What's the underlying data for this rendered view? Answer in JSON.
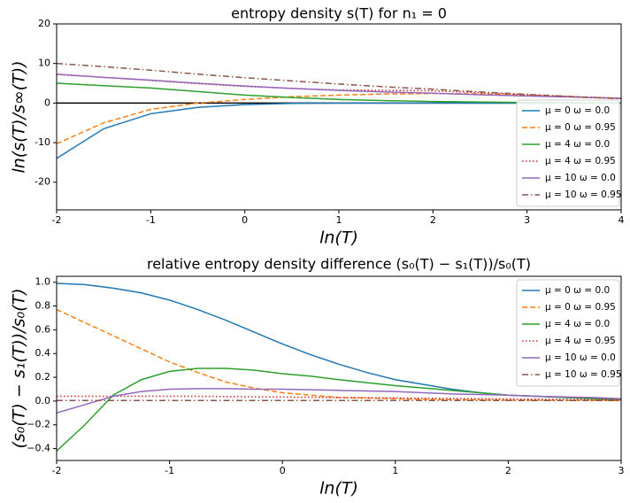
{
  "chart_data": [
    {
      "type": "line",
      "title": "entropy density s(T) for n₁ = 0",
      "x_label": "ln(T)",
      "y_label": "ln(s(T)/s∞(T))",
      "x": [
        -2,
        -1.5,
        -1,
        -0.5,
        0,
        0.5,
        1,
        1.5,
        2,
        2.5,
        3,
        3.5,
        4
      ],
      "xlim": [
        -2,
        4
      ],
      "ylim": [
        -27,
        20
      ],
      "xticks": [
        -2,
        -1,
        0,
        1,
        2,
        3,
        4
      ],
      "yticks": [
        -20,
        -10,
        0,
        10,
        20
      ],
      "zero_line": true,
      "legend": "lower right",
      "series": [
        {
          "name": "μ = 0 ω = 0.0",
          "color": "#1f77b4",
          "dash": "solid",
          "values": [
            -14,
            -6.5,
            -2.7,
            -1.1,
            -0.4,
            -0.1,
            0,
            0,
            0,
            0,
            0,
            0,
            0
          ]
        },
        {
          "name": "μ = 0 ω = 0.95",
          "color": "#ff7f0e",
          "dash": "dashed",
          "values": [
            -10.3,
            -5,
            -1.6,
            0,
            0.9,
            1.6,
            2,
            2.3,
            2.4,
            2.3,
            2,
            1.6,
            1.2
          ]
        },
        {
          "name": "μ = 4 ω = 0.0",
          "color": "#2ca02c",
          "dash": "solid",
          "values": [
            5,
            4.4,
            3.8,
            2.9,
            2,
            1.4,
            0.9,
            0.6,
            0.4,
            0.25,
            0.15,
            0.1,
            0.05
          ]
        },
        {
          "name": "μ = 4 ω = 0.95",
          "color": "#d62728",
          "dash": "dotted",
          "values": [
            7.2,
            6.5,
            5.7,
            4.9,
            4.2,
            3.7,
            3.3,
            3.2,
            3.1,
            2.6,
            2.1,
            1.6,
            1.1
          ]
        },
        {
          "name": "μ = 10 ω = 0.0",
          "color": "#9467bd",
          "dash": "solid",
          "values": [
            7.3,
            6.5,
            5.8,
            5,
            4.3,
            3.7,
            3.2,
            2.8,
            2.5,
            2.1,
            1.8,
            1.5,
            1.2
          ]
        },
        {
          "name": "μ = 10 ω = 0.95",
          "color": "#8c564b",
          "dash": "dashdot",
          "values": [
            10,
            9.2,
            8.3,
            7.3,
            6.4,
            5.6,
            4.8,
            4.1,
            3.5,
            2.8,
            2.2,
            1.6,
            1.1
          ]
        }
      ]
    },
    {
      "type": "line",
      "title": "relative entropy density difference (s₀(T) − s₁(T))/s₀(T)",
      "x_label": "ln(T)",
      "y_label": "(s₀(T) − s₁(T))/s₀(T)",
      "x": [
        -2,
        -1.75,
        -1.5,
        -1.25,
        -1,
        -0.75,
        -0.5,
        -0.25,
        0,
        0.25,
        0.5,
        0.75,
        1,
        1.25,
        1.5,
        1.75,
        2,
        2.25,
        2.5,
        2.75,
        3
      ],
      "xlim": [
        -2,
        3
      ],
      "ylim": [
        -0.5,
        1.05
      ],
      "xticks": [
        -2,
        -1,
        0,
        1,
        2,
        3
      ],
      "yticks": [
        {
          "value": -0.4,
          "label": "−0.4"
        },
        {
          "value": -0.2,
          "label": "−0.2"
        },
        {
          "value": 0,
          "label": "0.0"
        },
        0.2,
        0.4,
        0.6,
        0.8,
        {
          "value": 1,
          "label": "1.0"
        }
      ],
      "zero_line": false,
      "legend": "upper right",
      "series": [
        {
          "name": "μ = 0 ω = 0.0",
          "color": "#1f77b4",
          "dash": "solid",
          "values": [
            0.99,
            0.98,
            0.95,
            0.91,
            0.85,
            0.77,
            0.68,
            0.58,
            0.48,
            0.39,
            0.31,
            0.24,
            0.18,
            0.14,
            0.1,
            0.07,
            0.05,
            0.04,
            0.03,
            0.02,
            0.01
          ]
        },
        {
          "name": "μ = 0 ω = 0.95",
          "color": "#ff7f0e",
          "dash": "dashed",
          "values": [
            0.77,
            0.66,
            0.55,
            0.44,
            0.33,
            0.24,
            0.16,
            0.11,
            0.07,
            0.05,
            0.03,
            0.025,
            0.02,
            0.015,
            0.012,
            0.01,
            0.008,
            0.007,
            0.006,
            0.005,
            0.004
          ]
        },
        {
          "name": "μ = 4 ω = 0.0",
          "color": "#2ca02c",
          "dash": "solid",
          "values": [
            -0.42,
            -0.2,
            0.05,
            0.18,
            0.25,
            0.275,
            0.275,
            0.26,
            0.23,
            0.21,
            0.18,
            0.155,
            0.13,
            0.11,
            0.09,
            0.07,
            0.05,
            0.04,
            0.03,
            0.02,
            0.015
          ]
        },
        {
          "name": "μ = 4 ω = 0.95",
          "color": "#d62728",
          "dash": "dotted",
          "values": [
            0.04,
            0.04,
            0.04,
            0.04,
            0.04,
            0.04,
            0.038,
            0.036,
            0.034,
            0.032,
            0.03,
            0.028,
            0.026,
            0.024,
            0.022,
            0.02,
            0.018,
            0.016,
            0.014,
            0.012,
            0.01
          ]
        },
        {
          "name": "μ = 10 ω = 0.0",
          "color": "#9467bd",
          "dash": "solid",
          "values": [
            -0.1,
            -0.03,
            0.04,
            0.08,
            0.1,
            0.105,
            0.105,
            0.1,
            0.1,
            0.095,
            0.09,
            0.085,
            0.08,
            0.07,
            0.06,
            0.055,
            0.05,
            0.04,
            0.035,
            0.03,
            0.02
          ]
        },
        {
          "name": "μ = 10 ω = 0.95",
          "color": "#8c564b",
          "dash": "dashdot",
          "values": [
            0.005,
            0.005,
            0.005,
            0.005,
            0.005,
            0.005,
            0.005,
            0.005,
            0.005,
            0.005,
            0.005,
            0.005,
            0.005,
            0.005,
            0.005,
            0.005,
            0.005,
            0.005,
            0.005,
            0.005,
            0.005
          ]
        }
      ]
    }
  ]
}
